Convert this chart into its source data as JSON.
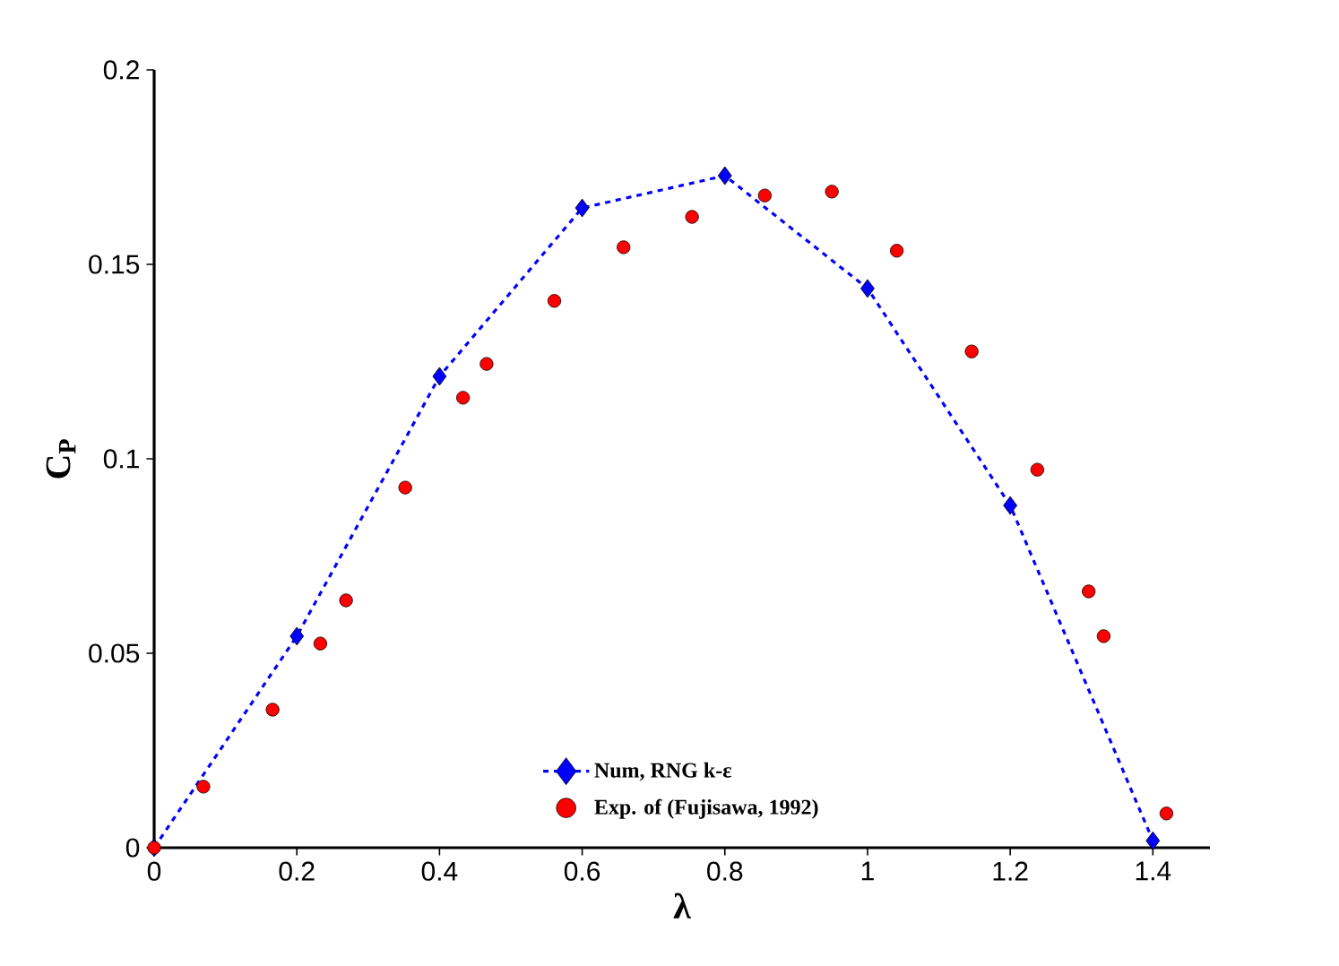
{
  "chart_data": {
    "type": "line",
    "xlabel": "λ",
    "ylabel": "C$_{P}$",
    "xlim": [
      0,
      1.48
    ],
    "ylim": [
      0,
      0.2
    ],
    "xticks": [
      0,
      0.2,
      0.4,
      0.6,
      0.8,
      1,
      1.2,
      1.4
    ],
    "yticks": [
      0,
      0.05,
      0.1,
      0.15,
      0.2
    ],
    "grid": false,
    "legend": "bottom",
    "series": [
      {
        "name": "Num, RNG  k-ε",
        "color": "#0000ff",
        "marker": "diamond",
        "line_style": "dashed",
        "x": [
          0,
          0.2,
          0.4,
          0.6,
          0.8,
          1.0,
          1.2,
          1.4
        ],
        "values": [
          0,
          0.0544,
          0.1212,
          0.1645,
          0.1728,
          0.1438,
          0.088,
          0.0018
        ]
      },
      {
        "name": "Exp. of (Fujisawa, 1992)",
        "type": "scatter",
        "color": "#ff0000",
        "marker": "circle",
        "x": [
          0,
          0.069,
          0.166,
          0.233,
          0.269,
          0.352,
          0.433,
          0.466,
          0.561,
          0.658,
          0.754,
          0.856,
          0.95,
          1.041,
          1.146,
          1.238,
          1.31,
          1.331,
          1.419
        ],
        "values": [
          0,
          0.0157,
          0.0355,
          0.0525,
          0.0636,
          0.0926,
          0.1157,
          0.1244,
          0.1406,
          0.1544,
          0.1622,
          0.1677,
          0.1687,
          0.1535,
          0.1276,
          0.0972,
          0.0659,
          0.0544,
          0.0088
        ]
      }
    ]
  }
}
